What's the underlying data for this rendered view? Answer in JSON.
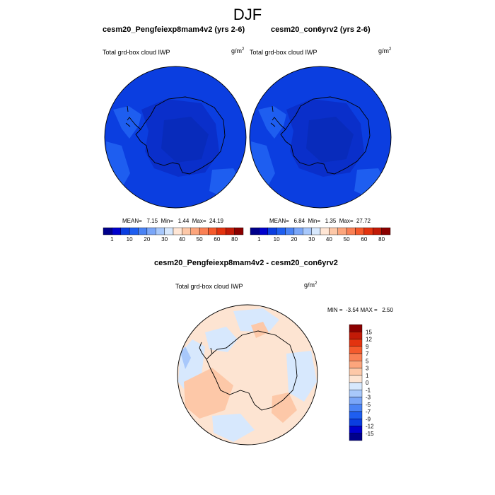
{
  "main_title": "DJF",
  "panels": [
    {
      "title": "cesm20_Pengfeiexp8mam4v2 (yrs 2-6)",
      "variable": "Total grd-box cloud IWP",
      "units_base": "g/m",
      "units_exp": "2",
      "stats": "MEAN=   7.15  Min=   1.44  Max=  24.19"
    },
    {
      "title": "cesm20_con6yrv2 (yrs 2-6)",
      "variable": "Total grd-box cloud IWP",
      "units_base": "g/m",
      "units_exp": "2",
      "stats": "MEAN=   6.84  Min=   1.35  Max=  27.72"
    },
    {
      "title": "cesm20_Pengfeiexp8mam4v2 - cesm20_con6yrv2",
      "variable": "Total grd-box cloud IWP",
      "units_base": "g/m",
      "units_exp": "2",
      "stats": "MIN =  -3.54 MAX =   2.50"
    }
  ],
  "chart_data": [
    {
      "type": "heatmap",
      "title": "cesm20_Pengfeiexp8mam4v2 (yrs 2-6)",
      "variable": "Total grd-box cloud IWP",
      "units": "g/m^2",
      "projection": "south polar stereographic",
      "mean": 7.15,
      "min": 1.44,
      "max": 24.19,
      "colorbar": {
        "orientation": "horizontal",
        "tick_labels": [
          "1",
          "10",
          "20",
          "30",
          "40",
          "50",
          "60",
          "80"
        ],
        "colors": [
          "#00008b",
          "#0000cd",
          "#0a3de0",
          "#1e5ef0",
          "#4a83f5",
          "#7aa6f8",
          "#a8c8fb",
          "#d7e8fd",
          "#ffe6d5",
          "#fdc8a8",
          "#fca57c",
          "#fa8054",
          "#f55a2c",
          "#e3330f",
          "#c21a07",
          "#8b0000"
        ]
      }
    },
    {
      "type": "heatmap",
      "title": "cesm20_con6yrv2 (yrs 2-6)",
      "variable": "Total grd-box cloud IWP",
      "units": "g/m^2",
      "projection": "south polar stereographic",
      "mean": 6.84,
      "min": 1.35,
      "max": 27.72,
      "colorbar": {
        "orientation": "horizontal",
        "tick_labels": [
          "1",
          "10",
          "20",
          "30",
          "40",
          "50",
          "60",
          "80"
        ],
        "colors": [
          "#00008b",
          "#0000cd",
          "#0a3de0",
          "#1e5ef0",
          "#4a83f5",
          "#7aa6f8",
          "#a8c8fb",
          "#d7e8fd",
          "#ffe6d5",
          "#fdc8a8",
          "#fca57c",
          "#fa8054",
          "#f55a2c",
          "#e3330f",
          "#c21a07",
          "#8b0000"
        ]
      }
    },
    {
      "type": "heatmap",
      "title": "cesm20_Pengfeiexp8mam4v2 - cesm20_con6yrv2",
      "variable": "Total grd-box cloud IWP",
      "units": "g/m^2",
      "projection": "south polar stereographic",
      "min": -3.54,
      "max": 2.5,
      "colorbar": {
        "orientation": "vertical",
        "tick_labels": [
          "15",
          "12",
          "9",
          "7",
          "5",
          "3",
          "1",
          "0",
          "-1",
          "-3",
          "-5",
          "-7",
          "-9",
          "-12",
          "-15"
        ],
        "colors": [
          "#8b0000",
          "#c21a07",
          "#e3330f",
          "#f55a2c",
          "#fa8054",
          "#fca57c",
          "#fdc8a8",
          "#fde4d2",
          "#d7e8fd",
          "#a8c8fb",
          "#7aa6f8",
          "#4a83f5",
          "#1e5ef0",
          "#0a3de0",
          "#0000cd",
          "#00008b"
        ]
      }
    }
  ]
}
